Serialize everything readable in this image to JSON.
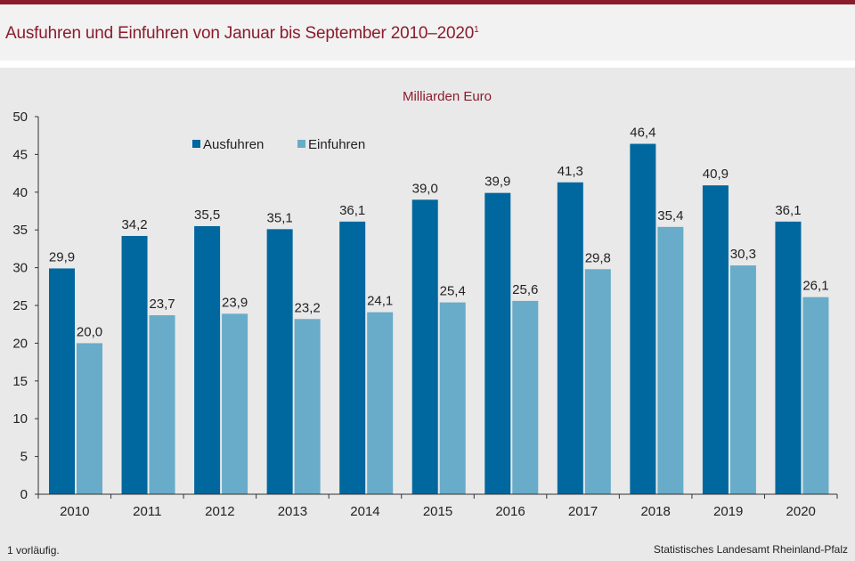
{
  "header": {
    "title": "Ausfuhren und Einfuhren von Januar bis September 2010–2020",
    "title_sup": "1"
  },
  "footer": {
    "footnote": "1 vorläufig.",
    "source": "Statistisches Landesamt Rheinland-Pfalz"
  },
  "colors": {
    "accent": "#8b1c2c",
    "ausfuhren": "#00689e",
    "einfuhren": "#68acc9"
  },
  "chart_data": {
    "type": "bar",
    "title": "",
    "unit_label": "Milliarden Euro",
    "categories": [
      "2010",
      "2011",
      "2012",
      "2013",
      "2014",
      "2015",
      "2016",
      "2017",
      "2018",
      "2019",
      "2020"
    ],
    "series": [
      {
        "name": "Ausfuhren",
        "values": [
          29.9,
          34.2,
          35.5,
          35.1,
          36.1,
          39.0,
          39.9,
          41.3,
          46.4,
          40.9,
          36.1
        ]
      },
      {
        "name": "Einfuhren",
        "values": [
          20.0,
          23.7,
          23.9,
          23.2,
          24.1,
          25.4,
          25.6,
          29.8,
          35.4,
          30.3,
          26.1
        ]
      }
    ],
    "ylim": [
      0,
      50
    ],
    "yticks": [
      0,
      5,
      10,
      15,
      20,
      25,
      30,
      35,
      40,
      45,
      50
    ],
    "decimal_separator": ",",
    "grid": false,
    "legend_position": "top-left"
  }
}
